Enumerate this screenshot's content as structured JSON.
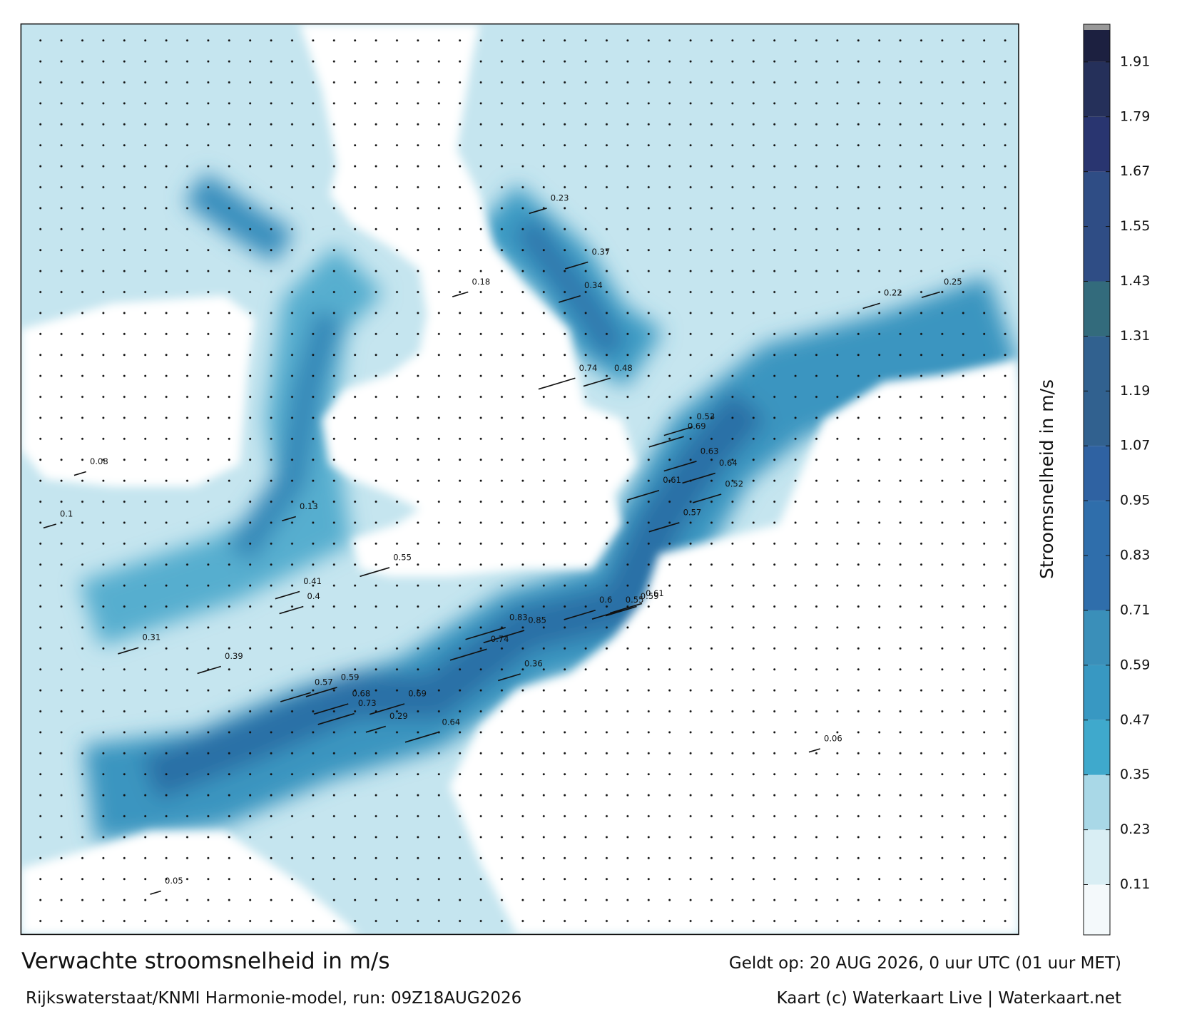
{
  "title": "Verwachte stroomsnelheid in m/s",
  "subtitle": "Rijkswaterstaat/KNMI Harmonie-model, run: 09Z18AUG2026",
  "valid_time": "Geldt op: 20 AUG 2026, 0 uur UTC (01 uur MET)",
  "credit": "Kaart (c) Waterkaart Live | Waterkaart.net",
  "colorbar": {
    "label": "Stroomsnelheid in m/s",
    "lim": [
      0,
      1.98
    ],
    "ticks": [
      0.11,
      0.23,
      0.35,
      0.47,
      0.59,
      0.71,
      0.83,
      0.95,
      1.07,
      1.19,
      1.31,
      1.43,
      1.55,
      1.67,
      1.79,
      1.91
    ],
    "stops": [
      {
        "value": 0,
        "color": "#f4f9fb"
      },
      {
        "value": 0.11,
        "color": "#d9eef4"
      },
      {
        "value": 0.23,
        "color": "#a9d8e7"
      },
      {
        "value": 0.35,
        "color": "#3fa9cc"
      },
      {
        "value": 0.47,
        "color": "#3898c2"
      },
      {
        "value": 0.59,
        "color": "#3a8fb9"
      },
      {
        "value": 0.71,
        "color": "#2f6eab"
      },
      {
        "value": 0.95,
        "color": "#2f62a2"
      },
      {
        "value": 1.07,
        "color": "#31618f"
      },
      {
        "value": 1.31,
        "color": "#336b7c"
      },
      {
        "value": 1.43,
        "color": "#2f4d85"
      },
      {
        "value": 1.67,
        "color": "#293570"
      },
      {
        "value": 1.79,
        "color": "#25305a"
      },
      {
        "value": 1.91,
        "color": "#1c2040"
      }
    ]
  },
  "speed_labels": [
    0.69,
    0.73,
    0.68,
    0.64,
    0.57,
    0.59,
    0.85,
    0.83,
    0.74,
    0.55,
    0.59,
    0.61,
    0.57,
    0.52,
    0.53,
    0.69,
    0.63,
    0.64,
    0.61,
    0.74,
    0.48,
    0.6,
    0.55,
    0.39,
    0.36,
    0.41,
    0.4,
    0.31,
    0.29,
    0.23,
    0.34,
    0.37,
    0.25,
    0.22,
    0.1,
    0.05,
    0.08,
    0.13,
    0.18,
    0.06
  ]
}
